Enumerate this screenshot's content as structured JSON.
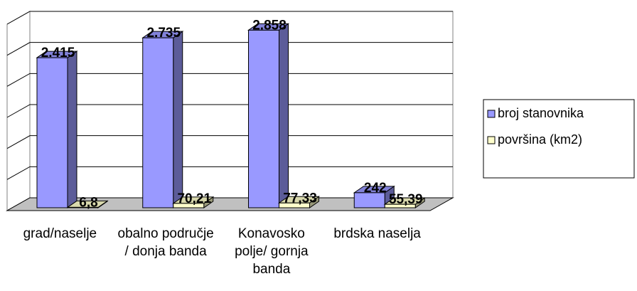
{
  "chart_data": {
    "type": "bar3d",
    "categories": [
      "grad/naselje",
      "obalno područje / donja banda",
      "Konavosko polje/ gornja banda",
      "brdska naselja"
    ],
    "series": [
      {
        "name": "broj stanovnika",
        "color": "#9999ff",
        "values": [
          2415,
          2735,
          2858,
          242
        ],
        "value_labels": [
          "2.415",
          "2.735",
          "2.858",
          "242"
        ]
      },
      {
        "name": "površina (km2)",
        "color": "#ffffcc",
        "values": [
          6.8,
          70.21,
          77.33,
          55.39
        ],
        "value_labels": [
          "6,8",
          "70,21",
          "77,33",
          "55,39"
        ]
      }
    ],
    "ylim": [
      0,
      3000
    ],
    "yticks": [
      0,
      500,
      1000,
      1500,
      2000,
      2500,
      3000
    ],
    "grid": true,
    "legend": "right"
  }
}
